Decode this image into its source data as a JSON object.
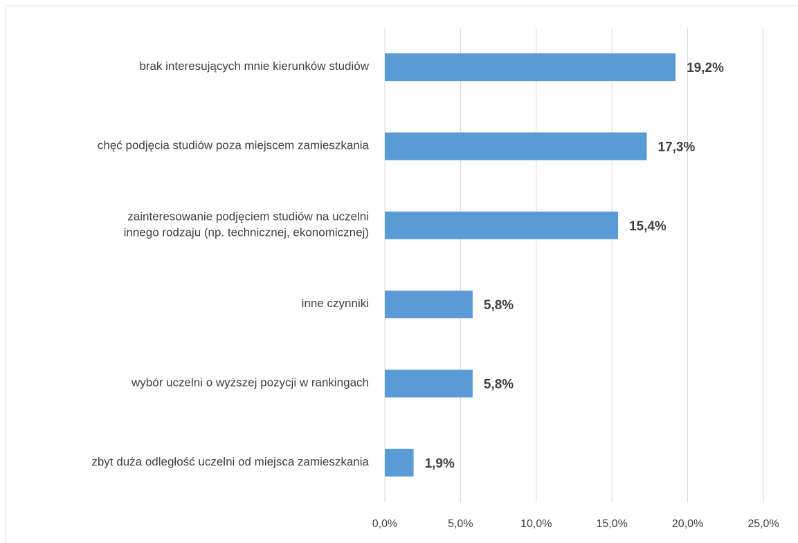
{
  "chart_data": {
    "type": "bar",
    "orientation": "horizontal",
    "categories": [
      "brak interesujących mnie kierunków studiów",
      "chęć podjęcia studiów poza miejscem zamieszkania",
      "zainteresowanie podjęciem studiów na uczelni\ninnego rodzaju (np. technicznej, ekonomicznej)",
      "inne czynniki",
      "wybór uczelni o wyższej pozycji w rankingach",
      "zbyt duża odległość uczelni od miejsca zamieszkania"
    ],
    "values": [
      19.2,
      17.3,
      15.4,
      5.8,
      5.8,
      1.9
    ],
    "value_labels": [
      "19,2%",
      "17,3%",
      "15,4%",
      "5,8%",
      "5,8%",
      "1,9%"
    ],
    "color": "#5b9bd5",
    "xlim": [
      0,
      25
    ],
    "xticks": [
      {
        "value": 0,
        "label": "0,0%"
      },
      {
        "value": 5,
        "label": "5,0%"
      },
      {
        "value": 10,
        "label": "10,0%"
      },
      {
        "value": 15,
        "label": "15,0%"
      },
      {
        "value": 20,
        "label": "20,0%"
      },
      {
        "value": 25,
        "label": "25,0%"
      }
    ],
    "grid": true
  }
}
